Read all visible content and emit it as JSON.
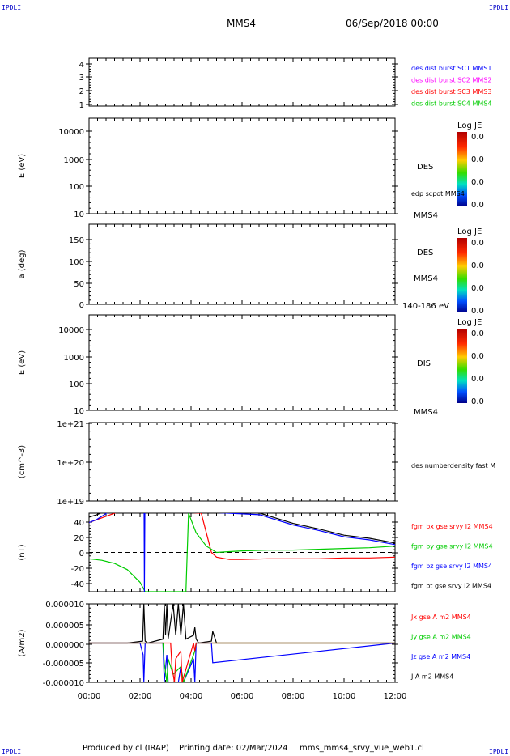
{
  "corners": {
    "tl": "IPDLI",
    "tr": "IPDLI",
    "bl": "IPDLI",
    "br": "IPDLI"
  },
  "header": {
    "title": "MMS4",
    "datetime": "06/Sep/2018 00:00"
  },
  "footer": {
    "produced": "Produced by cl (IRAP)",
    "printing": "Printing date: 02/Mar/2024",
    "file": "mms_mms4_srvy_vue_web1.cl"
  },
  "x_axis": {
    "min_hours": 0,
    "max_hours": 12,
    "ticks": [
      "00:00",
      "02:00",
      "04:00",
      "06:00",
      "08:00",
      "10:00",
      "12:00"
    ]
  },
  "colors": {
    "blue": "#0000ff",
    "magenta": "#ff00ff",
    "red": "#ff0000",
    "green": "#00cc00",
    "black": "#000000"
  },
  "chart_data": [
    {
      "type": "line",
      "title": "",
      "ylabel": "",
      "ylim": [
        0.5,
        4.5
      ],
      "yticks": [
        "1",
        "2",
        "3",
        "4"
      ],
      "legend": [
        {
          "name": "des dist burst SC1 MMS1",
          "color": "#0000ff"
        },
        {
          "name": "des dist burst SC2 MMS2",
          "color": "#ff00ff"
        },
        {
          "name": "des dist burst SC3 MMS3",
          "color": "#ff0000"
        },
        {
          "name": "des dist burst SC4 MMS4",
          "color": "#00cc00"
        }
      ],
      "series": []
    },
    {
      "type": "heatmap",
      "ylabel": "E (eV)",
      "yscale": "log",
      "ylim": [
        10,
        30000
      ],
      "yticks": [
        "10",
        "100",
        "1000",
        "10000"
      ],
      "instrument": "DES",
      "note": "edp scpot MMS4",
      "spacecraft": "MMS4",
      "colorbar": {
        "title": "Log JE",
        "ticks": [
          "0.0",
          "0.0",
          "0.0",
          "0.0"
        ]
      }
    },
    {
      "type": "heatmap",
      "ylabel": "a (deg)",
      "ylim": [
        0,
        180
      ],
      "yticks": [
        "0",
        "50",
        "100",
        "150"
      ],
      "instrument": "DES",
      "spacecraft": "MMS4",
      "energy": "140-186 eV",
      "colorbar": {
        "title": "Log JE",
        "ticks": [
          "0.0",
          "0.0",
          "0.0",
          "0.0"
        ]
      }
    },
    {
      "type": "heatmap",
      "ylabel": "E (eV)",
      "yscale": "log",
      "ylim": [
        10,
        30000
      ],
      "yticks": [
        "10",
        "100",
        "1000",
        "10000"
      ],
      "instrument": "DIS",
      "spacecraft": "MMS4",
      "colorbar": {
        "title": "Log JE",
        "ticks": [
          "0.0",
          "0.0",
          "0.0",
          "0.0"
        ]
      }
    },
    {
      "type": "line",
      "ylabel": "(cm^-3)",
      "yscale": "log",
      "ylim": [
        1e+19,
        1e+21
      ],
      "yticks": [
        "1e+19",
        "1e+20",
        "1e+21"
      ],
      "legend": [
        {
          "name": "des numberdensity fast M",
          "color": "#000000"
        }
      ],
      "series": []
    },
    {
      "type": "line",
      "ylabel": "(nT)",
      "ylim": [
        -50,
        50
      ],
      "yticks": [
        "-40",
        "-20",
        "0",
        "20",
        "40"
      ],
      "legend": [
        {
          "name": "fgm bx gse srvy l2 MMS4",
          "color": "#ff0000"
        },
        {
          "name": "fgm by gse srvy l2 MMS4",
          "color": "#00cc00"
        },
        {
          "name": "fgm bz gse srvy l2 MMS4",
          "color": "#0000ff"
        },
        {
          "name": "fgm bt gse srvy l2 MMS4",
          "color": "#000000"
        }
      ],
      "series": [
        {
          "name": "fgm bx gse srvy l2 MMS4",
          "color": "#ff0000",
          "x": [
            0,
            0.5,
            1.0,
            1.4,
            4.4,
            4.6,
            4.8,
            5.0,
            5.5,
            6,
            7,
            8,
            9,
            10,
            11,
            12
          ],
          "y": [
            38,
            44,
            50,
            55,
            50,
            25,
            0,
            -6,
            -9,
            -9,
            -8,
            -8,
            -8,
            -7,
            -7,
            -6
          ]
        },
        {
          "name": "fgm by gse srvy l2 MMS4",
          "color": "#00cc00",
          "x": [
            0,
            0.5,
            1.0,
            1.5,
            2.0,
            2.2,
            3.8,
            3.9,
            4.2,
            4.6,
            5.0,
            5.5,
            6,
            7,
            8,
            9,
            10,
            11,
            12
          ],
          "y": [
            -8,
            -10,
            -14,
            -22,
            -38,
            -50,
            -50,
            50,
            25,
            8,
            0,
            1,
            2,
            3,
            3,
            4,
            5,
            6,
            8
          ]
        },
        {
          "name": "fgm bz gse srvy l2 MMS4",
          "color": "#0000ff",
          "x": [
            0,
            0.3,
            0.6,
            0.9,
            2.16,
            2.17,
            2.19,
            6.7,
            7,
            8,
            9,
            10,
            11,
            12
          ],
          "y": [
            38,
            42,
            48,
            55,
            55,
            -50,
            55,
            48,
            45,
            35,
            28,
            20,
            16,
            10
          ]
        },
        {
          "name": "fgm bt gse srvy l2 MMS4",
          "color": "#000000",
          "x": [
            0,
            0.3,
            0.6,
            0.9,
            6.7,
            7,
            8,
            9,
            10,
            11,
            12
          ],
          "y": [
            45,
            48,
            52,
            55,
            50,
            47,
            37,
            30,
            22,
            18,
            12
          ]
        }
      ]
    },
    {
      "type": "line",
      "ylabel": "(A/m2)",
      "ylim": [
        -1e-05,
        1e-05
      ],
      "yticks": [
        "-0.000010",
        "-0.000005",
        "0.000000",
        "0.000005",
        "0.000010"
      ],
      "legend": [
        {
          "name": "Jx gse A m2 MMS4",
          "color": "#ff0000"
        },
        {
          "name": "Jy gse A m2 MMS4",
          "color": "#00cc00"
        },
        {
          "name": "Jz gse A m2 MMS4",
          "color": "#0000ff"
        },
        {
          "name": "J A m2 MMS4",
          "color": "#000000"
        }
      ],
      "series": [
        {
          "name": "J A m2 MMS4",
          "color": "#000000",
          "x": [
            0,
            1.5,
            2.1,
            2.15,
            2.2,
            2.3,
            2.9,
            2.95,
            3.0,
            3.05,
            3.1,
            3.3,
            3.4,
            3.5,
            3.6,
            3.7,
            3.8,
            4.1,
            4.15,
            4.2,
            4.3,
            4.8,
            4.85,
            5,
            12
          ],
          "y": [
            0,
            0,
            5e-07,
            1e-05,
            5e-07,
            0,
            1e-06,
            1e-05,
            2e-06,
            1e-05,
            1e-06,
            1e-05,
            2e-06,
            1e-05,
            2e-06,
            1e-05,
            1e-06,
            2e-06,
            4e-06,
            1e-06,
            0,
            5e-07,
            3e-06,
            0,
            0
          ]
        },
        {
          "name": "Jz gse A m2 MMS4",
          "color": "#0000ff",
          "x": [
            0,
            2.0,
            2.12,
            2.15,
            2.2,
            2.9,
            2.95,
            3.05,
            3.1,
            3.3,
            3.4,
            3.5,
            3.6,
            3.7,
            4.1,
            4.15,
            4.2,
            4.8,
            4.85,
            12
          ],
          "y": [
            0,
            0,
            -3e-06,
            -1e-05,
            0,
            0,
            -1e-05,
            -3e-06,
            -1e-05,
            -1e-05,
            -1e-05,
            -1e-05,
            -6e-06,
            -1e-05,
            -4e-06,
            -1e-05,
            0,
            0,
            -5e-06,
            0
          ]
        },
        {
          "name": "Jy gse A m2 MMS4",
          "color": "#00cc00",
          "x": [
            0,
            2.9,
            2.95,
            3.05,
            3.1,
            3.3,
            3.6,
            3.7,
            4.1,
            4.15,
            4.2,
            12
          ],
          "y": [
            0,
            0,
            -5e-06,
            -1e-05,
            -4e-06,
            -8e-06,
            -6e-06,
            -1e-05,
            -3e-06,
            -2e-06,
            0,
            0
          ]
        },
        {
          "name": "Jx gse A m2 MMS4",
          "color": "#ff0000",
          "x": [
            0,
            3.2,
            3.25,
            3.35,
            3.4,
            3.6,
            3.65,
            4.1,
            4.15,
            4.2,
            12
          ],
          "y": [
            0,
            0,
            -6e-06,
            -1e-05,
            -4e-06,
            -2e-06,
            -1e-05,
            0,
            -2e-06,
            0,
            0
          ]
        }
      ]
    }
  ]
}
